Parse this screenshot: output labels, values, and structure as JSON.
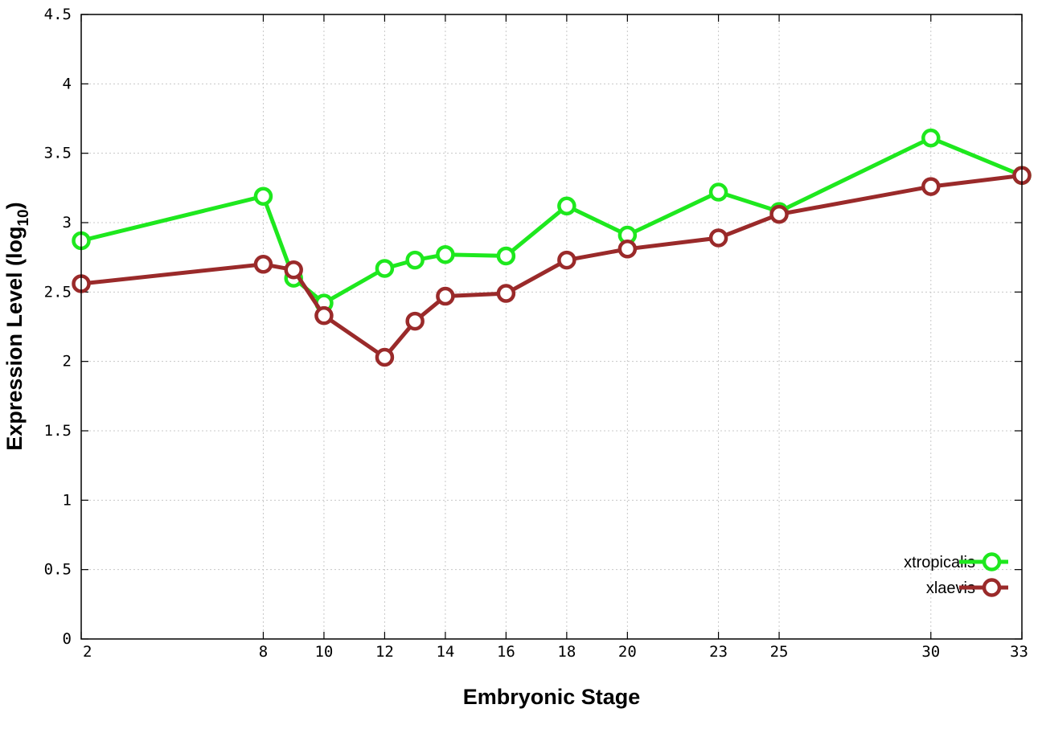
{
  "chart_data": {
    "type": "line",
    "xlabel": "Embryonic Stage",
    "ylabel_main": "Expression Level (log",
    "ylabel_sub": "10",
    "ylabel_close": ")",
    "xlim": [
      2,
      33
    ],
    "ylim": [
      0,
      4.5
    ],
    "x_ticks": [
      2,
      8,
      10,
      12,
      14,
      16,
      18,
      20,
      23,
      25,
      30,
      33
    ],
    "y_ticks": [
      0,
      0.5,
      1,
      1.5,
      2,
      2.5,
      3,
      3.5,
      4,
      4.5
    ],
    "grid": true,
    "legend_position": "bottom-right",
    "series": [
      {
        "name": "xtropicalis",
        "color": "#1ee81e",
        "x": [
          2,
          8,
          9,
          10,
          12,
          13,
          14,
          16,
          18,
          20,
          23,
          25,
          30,
          33
        ],
        "y": [
          2.87,
          3.19,
          2.6,
          2.42,
          2.67,
          2.73,
          2.77,
          2.76,
          3.12,
          2.91,
          3.22,
          3.08,
          3.61,
          3.34
        ]
      },
      {
        "name": "xlaevis",
        "color": "#9a2a2a",
        "x": [
          2,
          8,
          9,
          10,
          12,
          13,
          14,
          16,
          18,
          20,
          23,
          25,
          30,
          33
        ],
        "y": [
          2.56,
          2.7,
          2.66,
          2.33,
          2.03,
          2.29,
          2.47,
          2.49,
          2.73,
          2.81,
          2.89,
          3.06,
          3.26,
          3.34
        ]
      }
    ]
  }
}
